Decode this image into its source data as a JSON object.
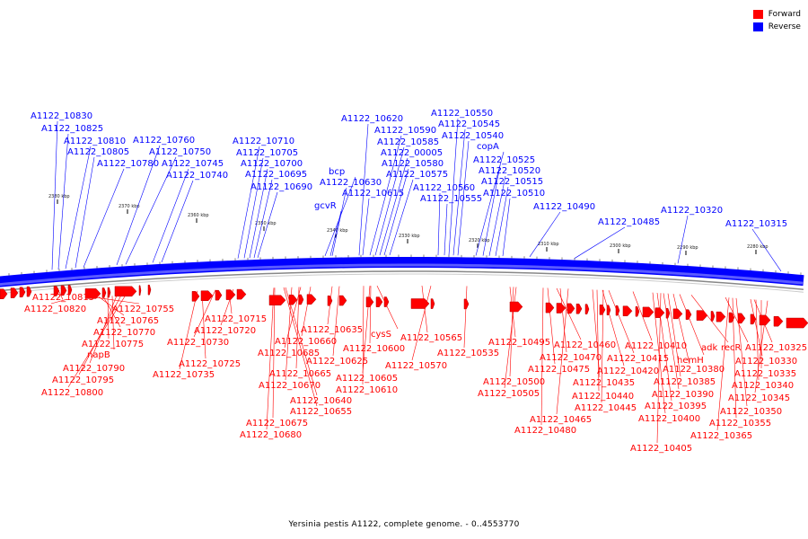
{
  "legend": {
    "forward_label": "Forward",
    "reverse_label": "Reverse",
    "forward_color": "#ff0000",
    "reverse_color": "#0000ff"
  },
  "caption": "Yersinia pestis A1122, complete genome. - 0..4553770",
  "ticks": [
    "2380 kbp",
    "2370 kbp",
    "2360 kbp",
    "2350 kbp",
    "2340 kbp",
    "2330 kbp",
    "2320 kbp",
    "2310 kbp",
    "2300 kbp",
    "2290 kbp",
    "2280 kbp"
  ],
  "reverse_labels": [
    "A1122_10830",
    "A1122_10825",
    "A1122_10810",
    "A1122_10805",
    "A1122_10780",
    "A1122_10760",
    "A1122_10750",
    "A1122_10745",
    "A1122_10740",
    "A1122_10710",
    "A1122_10705",
    "A1122_10700",
    "A1122_10695",
    "A1122_10690",
    "bcp",
    "A1122_10630",
    "gcvR",
    "A1122_10620",
    "A1122_10590",
    "A1122_10585",
    "A1122_00005",
    "A1122_10580",
    "A1122_10575",
    "A1122_10615",
    "A1122_10550",
    "A1122_10545",
    "A1122_10540",
    "copA",
    "A1122_10525",
    "A1122_10520",
    "A1122_10515",
    "A1122_10560",
    "A1122_10555",
    "A1122_10510",
    "A1122_10490",
    "A1122_10485",
    "A1122_10320",
    "A1122_10315"
  ],
  "forward_labels": [
    "A1122_10815",
    "A1122_10820",
    "A1122_10755",
    "A1122_10765",
    "A1122_10770",
    "A1122_10775",
    "napB",
    "A1122_10790",
    "A1122_10795",
    "A1122_10800",
    "A1122_10715",
    "A1122_10720",
    "A1122_10730",
    "A1122_10725",
    "A1122_10735",
    "A1122_10635",
    "A1122_10660",
    "A1122_10685",
    "A1122_10665",
    "A1122_10670",
    "A1122_10640",
    "A1122_10655",
    "A1122_10675",
    "A1122_10680",
    "cysS",
    "A1122_10600",
    "A1122_10625",
    "A1122_10605",
    "A1122_10610",
    "A1122_10565",
    "A1122_10570",
    "A1122_10535",
    "A1122_10495",
    "A1122_10500",
    "A1122_10505",
    "A1122_10460",
    "A1122_10470",
    "A1122_10475",
    "A1122_10480",
    "A1122_10465",
    "A1122_10435",
    "A1122_10440",
    "A1122_10445",
    "A1122_10420",
    "A1122_10415",
    "A1122_10410",
    "hemH",
    "A1122_10380",
    "A1122_10385",
    "A1122_10390",
    "A1122_10395",
    "A1122_10400",
    "A1122_10405",
    "adk",
    "recR",
    "A1122_10325",
    "A1122_10330",
    "A1122_10335",
    "A1122_10340",
    "A1122_10345",
    "A1122_10350",
    "A1122_10355",
    "A1122_10365"
  ]
}
